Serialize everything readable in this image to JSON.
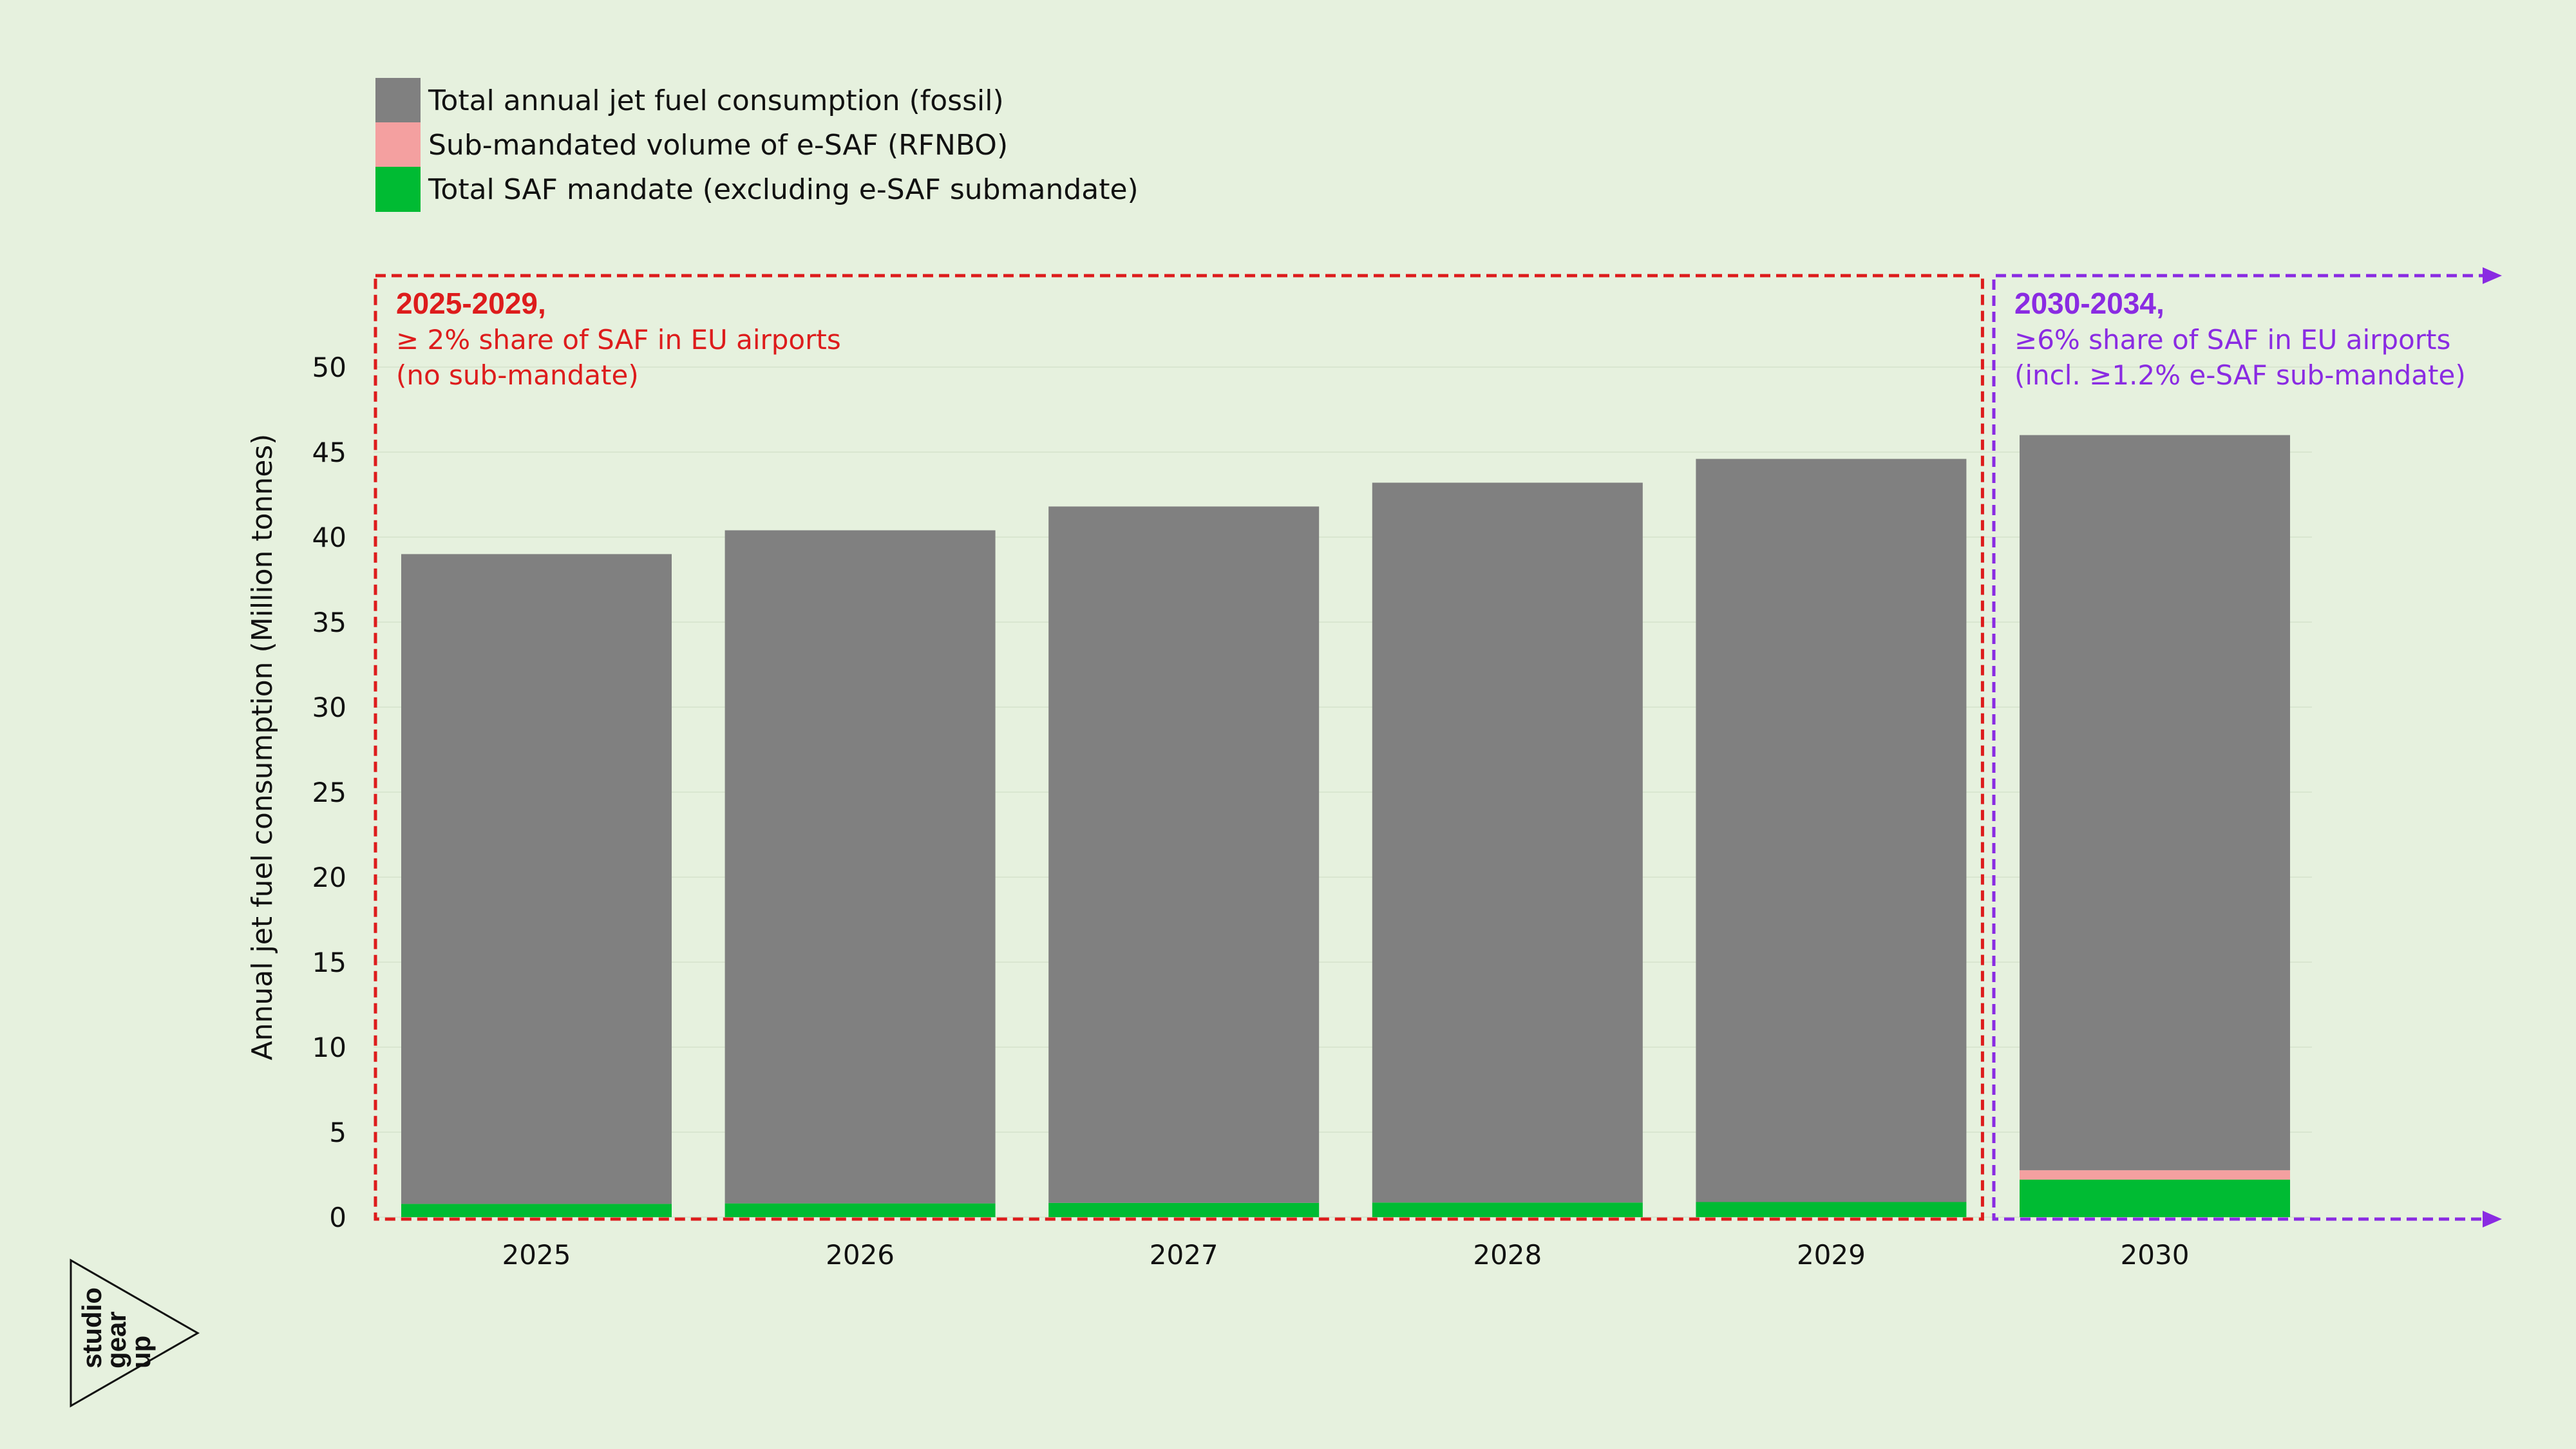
{
  "chart_data": {
    "type": "bar",
    "stacked": true,
    "categories": [
      "2025",
      "2026",
      "2027",
      "2028",
      "2029",
      "2030"
    ],
    "series": [
      {
        "name": "Total SAF mandate (excluding e-SAF submandate)",
        "color": "#00bb33",
        "values": [
          0.78,
          0.81,
          0.84,
          0.86,
          0.89,
          2.21
        ]
      },
      {
        "name": "Sub-mandated volume of e-SAF (RFNBO)",
        "color": "#f4a0a0",
        "values": [
          0,
          0,
          0,
          0,
          0,
          0.55
        ]
      },
      {
        "name": "Total annual jet fuel consumption (fossil)",
        "color": "#808080",
        "values": [
          38.22,
          39.59,
          40.96,
          42.34,
          43.71,
          43.24
        ]
      }
    ],
    "legend_order": [
      2,
      1,
      0
    ],
    "ylabel": "Annual jet fuel consumption (Million tonnes)",
    "xlabel": "",
    "ylim": [
      0,
      55
    ],
    "yticks": [
      0,
      5,
      10,
      15,
      20,
      25,
      30,
      35,
      40,
      45,
      50
    ],
    "grid": "horizontal",
    "legend_position": "top-left",
    "annotations": [
      {
        "categories": [
          "2025",
          "2029"
        ],
        "title": "2025-2029,",
        "lines": [
          "≥ 2% share of SAF in EU airports",
          "(no sub-mandate)"
        ],
        "color": "#dd1c1c"
      },
      {
        "categories": [
          "2030"
        ],
        "title": "2030-2034,",
        "lines": [
          "≥6% share of SAF in EU airports",
          "(incl. ≥1.2% e-SAF sub-mandate)"
        ],
        "color": "#8a2be2"
      }
    ]
  },
  "logo": {
    "text": [
      "studio",
      "gear",
      "up"
    ]
  }
}
